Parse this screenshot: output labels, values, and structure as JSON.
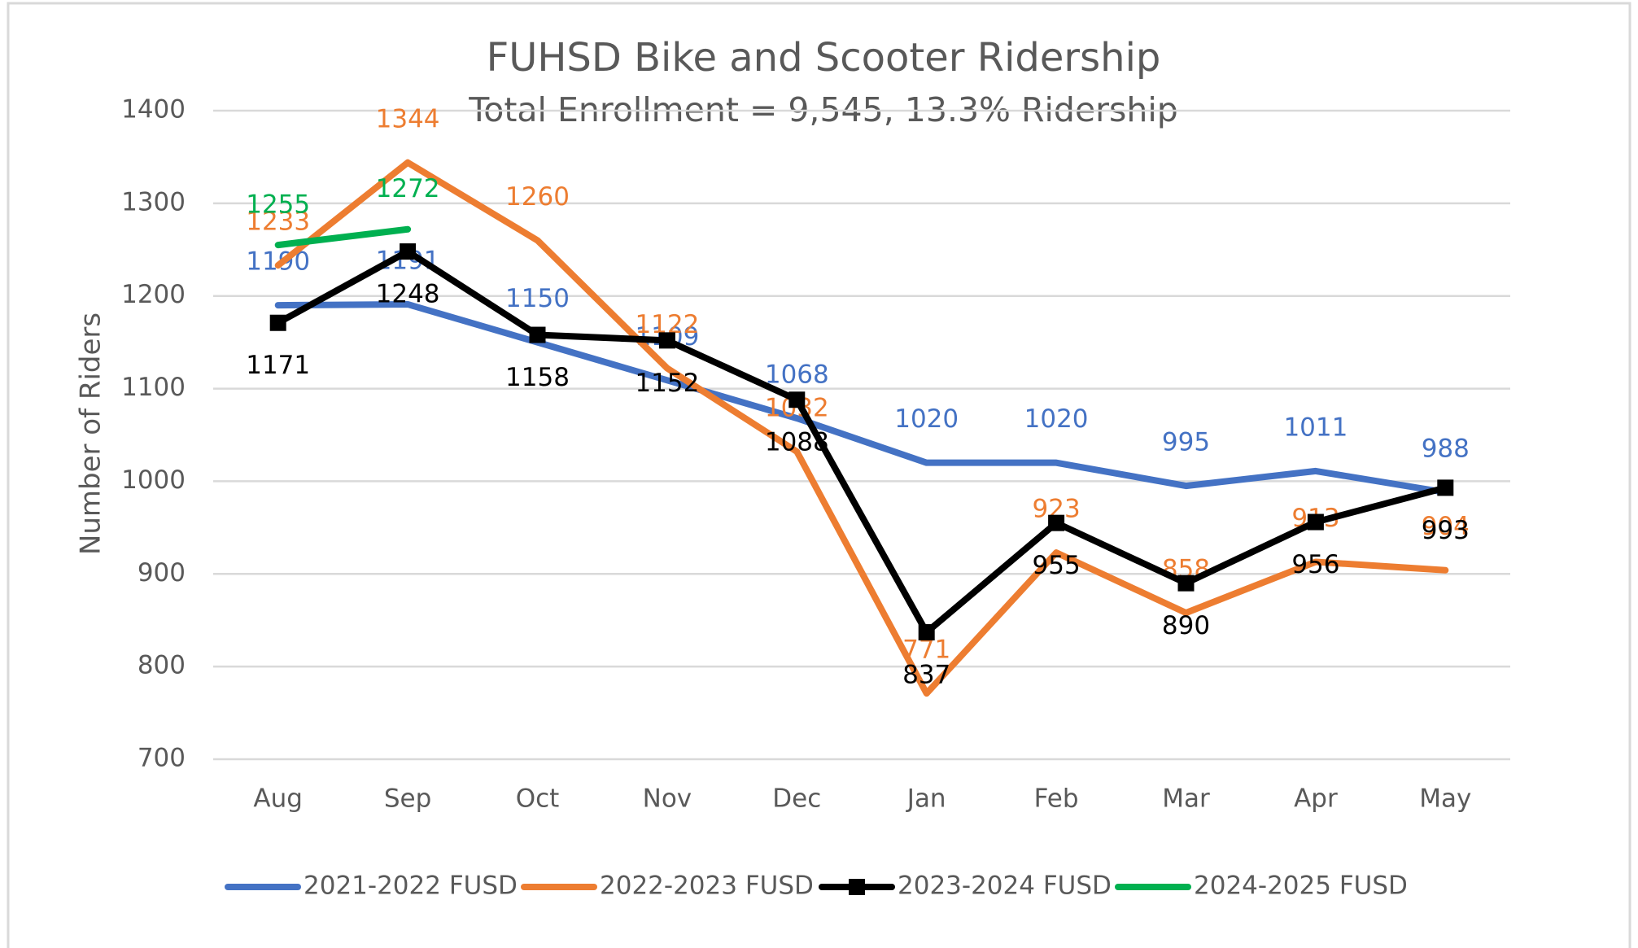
{
  "chart_data": {
    "type": "line",
    "title": "FUHSD Bike and Scooter Ridership",
    "subtitle": "Total Enrollment  = 9,545, 13.3% Ridership",
    "y_label": "Number of Riders",
    "categories": [
      "Aug",
      "Sep",
      "Oct",
      "Nov",
      "Dec",
      "Jan",
      "Feb",
      "Mar",
      "Apr",
      "May"
    ],
    "series": [
      {
        "name": "2021-2022 FUSD",
        "color": "#4472c4",
        "values": [
          1190,
          1191,
          1150,
          1109,
          1068,
          1020,
          1020,
          995,
          1011,
          988
        ]
      },
      {
        "name": "2022-2023 FUSD",
        "color": "#ed7d31",
        "values": [
          1233,
          1344,
          1260,
          1122,
          1032,
          771,
          923,
          858,
          913,
          904
        ]
      },
      {
        "name": "2023-2024 FUSD",
        "color": "#000000",
        "marker": "square",
        "values": [
          1171,
          1248,
          1158,
          1152,
          1088,
          837,
          955,
          890,
          956,
          993
        ]
      },
      {
        "name": "2024-2025 FUSD",
        "color": "#00b050",
        "values": [
          1255,
          1272,
          null,
          null,
          null,
          null,
          null,
          null,
          null,
          null
        ]
      }
    ],
    "ylim": [
      700,
      1400
    ],
    "yticks": [
      700,
      800,
      900,
      1000,
      1100,
      1200,
      1300,
      1400
    ],
    "grid": true,
    "legend": "bottom"
  }
}
